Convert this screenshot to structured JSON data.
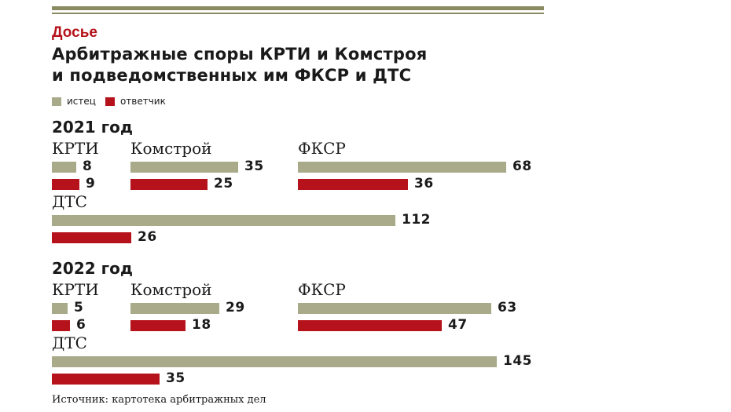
{
  "header": {
    "kicker": "Досье",
    "title_line1": "Арбитражные споры КРТИ и Комстроя",
    "title_line2": "и подведомственных им ФКСР и ДТС"
  },
  "legend": {
    "plaintiff": "истец",
    "defendant": "ответчик"
  },
  "colors": {
    "plaintiff": "#a8aa8a",
    "defendant": "#b5121b",
    "rule": "#8a8a63",
    "kicker": "#b5121b"
  },
  "source": "Источник: картотека арбитражных дел",
  "chart_data": {
    "type": "bar",
    "orientation": "horizontal",
    "series_names": [
      "истец",
      "ответчик"
    ],
    "groups": [
      {
        "year_label": "2021 год",
        "organizations": [
          {
            "name": "КРТИ",
            "plaintiff": 8,
            "defendant": 9
          },
          {
            "name": "Комстрой",
            "plaintiff": 35,
            "defendant": 25
          },
          {
            "name": "ФКСР",
            "plaintiff": 68,
            "defendant": 36
          },
          {
            "name": "ДТС",
            "plaintiff": 112,
            "defendant": 26
          }
        ]
      },
      {
        "year_label": "2022 год",
        "organizations": [
          {
            "name": "КРТИ",
            "plaintiff": 5,
            "defendant": 6
          },
          {
            "name": "Комстрой",
            "plaintiff": 29,
            "defendant": 18
          },
          {
            "name": "ФКСР",
            "plaintiff": 63,
            "defendant": 47
          },
          {
            "name": "ДТС",
            "plaintiff": 145,
            "defendant": 35
          }
        ]
      }
    ]
  }
}
